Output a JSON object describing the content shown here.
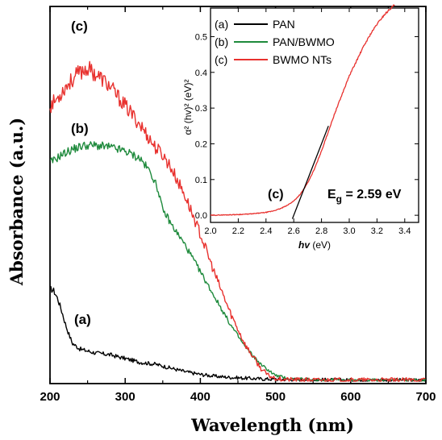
{
  "chart_data": [
    {
      "type": "line",
      "xlabel": "Wavelength (nm)",
      "ylabel": "Absorbance (a.u.)",
      "xlim": [
        200,
        700
      ],
      "ylim": [
        0,
        1
      ],
      "y_ticks_labeled": false,
      "x_ticks": [
        200,
        300,
        400,
        500,
        600,
        700
      ],
      "x_tick_labels": [
        "200",
        "300",
        "400",
        "500",
        "600",
        "700"
      ],
      "curve_labels": [
        "(a)",
        "(b)",
        "(c)"
      ],
      "series": [
        {
          "name": "(a)",
          "color": "#000000",
          "x": [
            200,
            205,
            210,
            215,
            220,
            225,
            230,
            240,
            250,
            260,
            280,
            300,
            320,
            340,
            360,
            380,
            400,
            420,
            440,
            460,
            480,
            500,
            550,
            600,
            650,
            700
          ],
          "y": [
            0.245,
            0.24,
            0.22,
            0.19,
            0.155,
            0.125,
            0.1,
            0.085,
            0.08,
            0.075,
            0.07,
            0.06,
            0.05,
            0.045,
            0.035,
            0.025,
            0.018,
            0.013,
            0.01,
            0.008,
            0.006,
            0.005,
            0.004,
            0.003,
            0.003,
            0.003
          ]
        },
        {
          "name": "(b)",
          "color": "#1e8a3c",
          "x": [
            200,
            205,
            215,
            230,
            245,
            260,
            280,
            300,
            320,
            335,
            345,
            350,
            355,
            360,
            370,
            380,
            400,
            420,
            440,
            460,
            480,
            500,
            520,
            550,
            600,
            650,
            700
          ],
          "y": [
            0.58,
            0.585,
            0.6,
            0.615,
            0.625,
            0.625,
            0.62,
            0.61,
            0.59,
            0.55,
            0.5,
            0.45,
            0.44,
            0.42,
            0.39,
            0.36,
            0.29,
            0.22,
            0.15,
            0.09,
            0.045,
            0.015,
            0.006,
            0.004,
            0.003,
            0.003,
            0.003
          ]
        },
        {
          "name": "(c)",
          "color": "#e8312e",
          "x": [
            200,
            210,
            220,
            230,
            240,
            250,
            260,
            270,
            280,
            300,
            320,
            340,
            350,
            360,
            380,
            400,
            420,
            440,
            460,
            480,
            490,
            500,
            510,
            520,
            550,
            600,
            650,
            700
          ],
          "y": [
            0.73,
            0.75,
            0.78,
            0.8,
            0.82,
            0.83,
            0.815,
            0.8,
            0.78,
            0.73,
            0.68,
            0.62,
            0.6,
            0.57,
            0.49,
            0.39,
            0.28,
            0.18,
            0.095,
            0.035,
            0.015,
            0.008,
            0.005,
            0.004,
            0.003,
            0.003,
            0.003,
            0.003
          ]
        }
      ]
    },
    {
      "type": "line",
      "inset": true,
      "xlabel": "hv (eV)",
      "ylabel": "α² (hv)² (eV)²",
      "xlim": [
        2.0,
        3.5
      ],
      "ylim": [
        -0.02,
        0.58
      ],
      "x_ticks": [
        2.0,
        2.2,
        2.4,
        2.6,
        2.8,
        3.0,
        3.2,
        3.4
      ],
      "x_tick_labels": [
        "2.0",
        "2.2",
        "2.4",
        "2.6",
        "2.8",
        "3.0",
        "3.2",
        "3.4"
      ],
      "y_ticks": [
        0.0,
        0.1,
        0.2,
        0.3,
        0.4,
        0.5
      ],
      "y_tick_labels": [
        "0.0",
        "0.1",
        "0.2",
        "0.3",
        "0.4",
        "0.5"
      ],
      "legend": {
        "placement": "top-left",
        "entries": [
          {
            "label": "(a)",
            "name": "PAN",
            "color": "#000000"
          },
          {
            "label": "(b)",
            "name": "PAN/BWMO",
            "color": "#1e8a3c"
          },
          {
            "label": "(c)",
            "name": "BWMO NTs",
            "color": "#e8312e"
          }
        ]
      },
      "annotations": {
        "curve_label": "(c)",
        "band_gap": "E_g = 2.59 eV"
      },
      "series": [
        {
          "name": "(c)",
          "color": "#e8312e",
          "x": [
            2.0,
            2.1,
            2.2,
            2.3,
            2.4,
            2.45,
            2.5,
            2.55,
            2.6,
            2.65,
            2.7,
            2.75,
            2.8,
            2.85,
            2.9,
            2.95,
            3.0,
            3.05,
            3.1,
            3.15,
            3.2,
            3.25,
            3.3,
            3.33
          ],
          "y": [
            0.0,
            0.001,
            0.002,
            0.004,
            0.008,
            0.012,
            0.018,
            0.027,
            0.04,
            0.06,
            0.09,
            0.13,
            0.18,
            0.235,
            0.29,
            0.34,
            0.39,
            0.43,
            0.47,
            0.505,
            0.535,
            0.56,
            0.58,
            0.59
          ]
        },
        {
          "name": "fit",
          "color": "#000000",
          "x": [
            2.59,
            2.85
          ],
          "y": [
            -0.01,
            0.25
          ]
        }
      ]
    }
  ]
}
